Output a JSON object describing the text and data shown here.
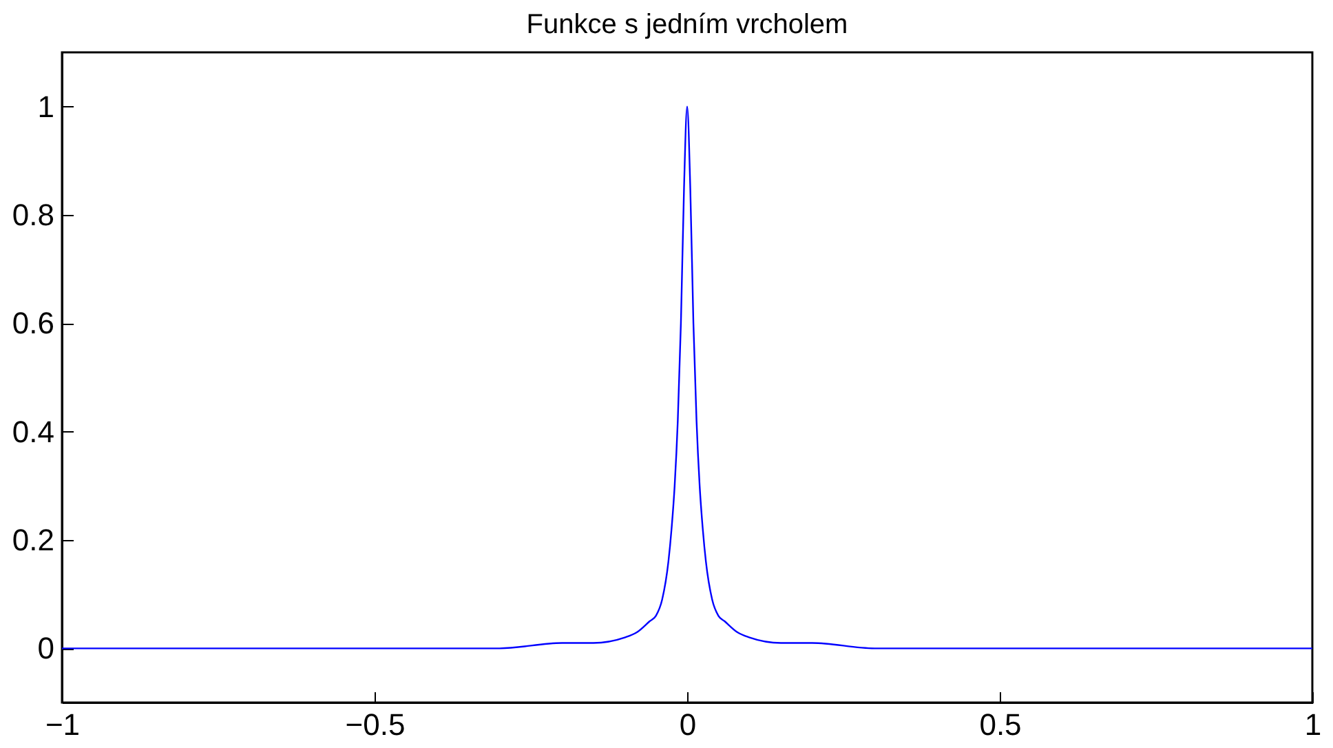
{
  "chart_data": {
    "type": "line",
    "title": "Funkce s jedním vrcholem",
    "x": [
      -1,
      -0.5,
      -0.3,
      -0.2,
      -0.15,
      -0.1,
      -0.08,
      -0.06,
      -0.05,
      -0.04,
      -0.03,
      -0.025,
      -0.02,
      -0.015,
      -0.01,
      -0.005,
      0,
      0.005,
      0.01,
      0.015,
      0.02,
      0.025,
      0.03,
      0.04,
      0.05,
      0.06,
      0.08,
      0.1,
      0.15,
      0.2,
      0.3,
      0.5,
      1
    ],
    "series": [
      {
        "color": "#0000ff",
        "values": [
          0,
          0,
          0,
          0.01,
          0.01,
          0.02,
          0.03,
          0.05,
          0.06,
          0.09,
          0.16,
          0.22,
          0.3,
          0.42,
          0.6,
          0.85,
          1,
          0.85,
          0.6,
          0.42,
          0.3,
          0.22,
          0.16,
          0.09,
          0.06,
          0.05,
          0.03,
          0.02,
          0.01,
          0.01,
          0,
          0,
          0
        ]
      }
    ],
    "xlim": [
      -1,
      1
    ],
    "xticks": [
      -1,
      -0.5,
      0,
      0.5,
      1
    ],
    "ylim": [
      -0.1,
      1.1
    ],
    "yticks": [
      0,
      0.2,
      0.4,
      0.6,
      0.8,
      1
    ],
    "grid": false,
    "legend": false,
    "marker": "none",
    "line_style": "solid"
  }
}
